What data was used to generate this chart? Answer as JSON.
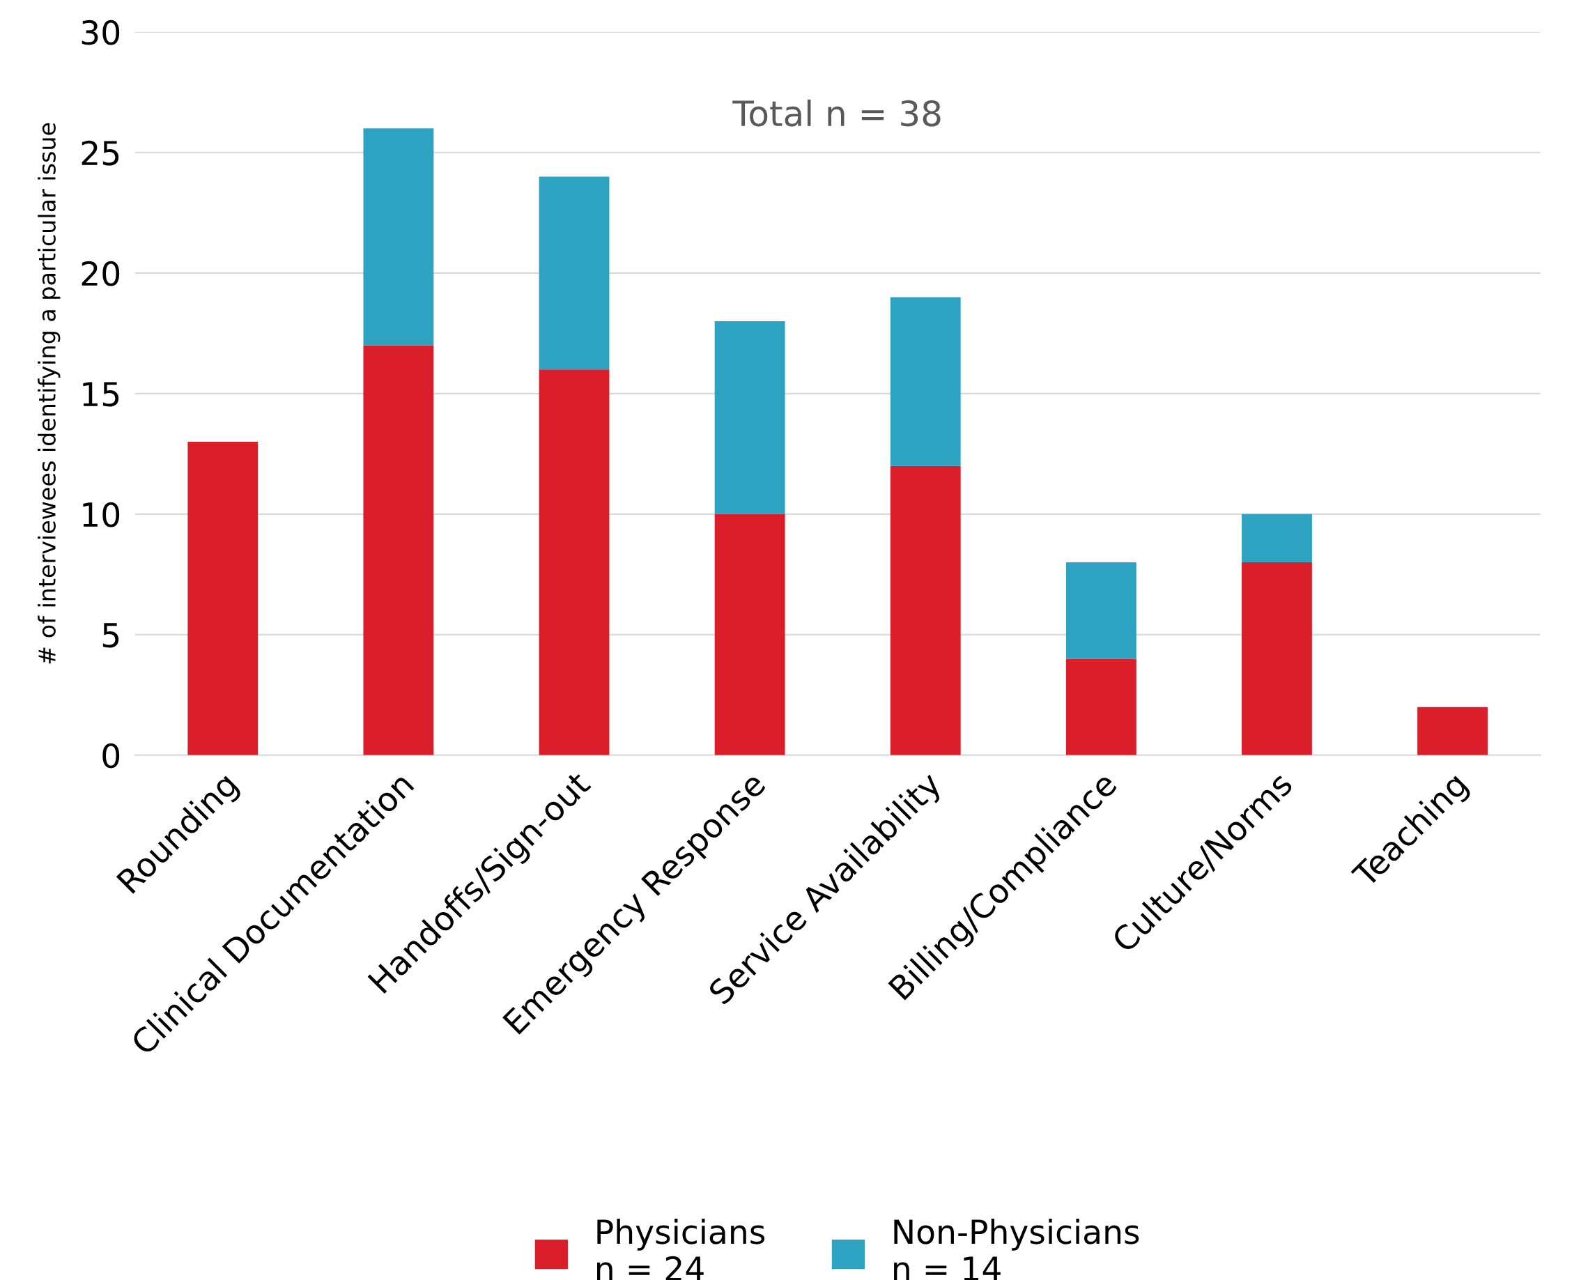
{
  "chart_data": {
    "type": "bar",
    "stacked": true,
    "ylabel": "# of interviewees identifying a particular issue",
    "categories": [
      "Rounding",
      "Clinical Documentation",
      "Handoffs/Sign-out",
      "Emergency Response",
      "Service Availability",
      "Billing/Compliance",
      "Culture/Norms",
      "Teaching"
    ],
    "series": [
      {
        "name": "Physicians\nn = 24",
        "color": "#da1f2b",
        "values": [
          13,
          17,
          16,
          10,
          12,
          4,
          8,
          2
        ]
      },
      {
        "name": "Non-Physicians\nn = 14",
        "color": "#2ea3c1",
        "values": [
          0,
          9,
          8,
          8,
          7,
          4,
          2,
          0
        ]
      }
    ],
    "ylim": [
      0,
      30
    ],
    "yticks": [
      0,
      5,
      10,
      15,
      20,
      25,
      30
    ],
    "grid": "y",
    "legend": "bottom",
    "annotations": [
      "Total n = 38"
    ]
  }
}
